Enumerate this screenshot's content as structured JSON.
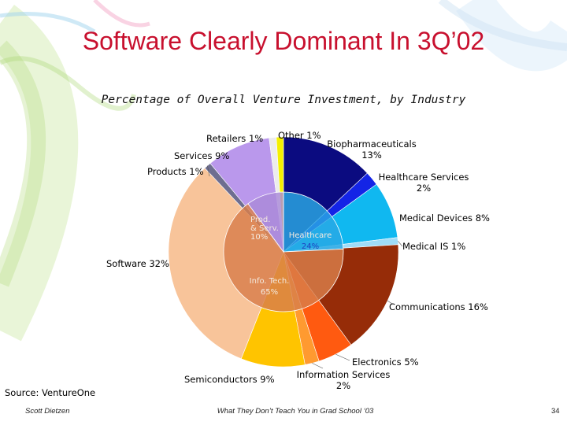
{
  "slide": {
    "title": "Software Clearly Dominant In 3Q’02",
    "source": "Source: VentureOne",
    "footer_author": "Scott Dietzen",
    "footer_center": "What They Don’t Teach You in Grad School ‘03",
    "page_number": "34"
  },
  "chart_data": {
    "type": "pie",
    "title": "Percentage of Overall Venture Investment, by Industry",
    "slices": [
      {
        "label": "Biopharmaceuticals",
        "value_label": "13%",
        "value": 13,
        "color": "#0b0b80"
      },
      {
        "label": "Healthcare Services",
        "value_label": "2%",
        "value": 2,
        "color": "#1424e6"
      },
      {
        "label": "Medical Devices",
        "value_label": "8%",
        "value": 8,
        "color": "#10b8f0"
      },
      {
        "label": "Medical IS",
        "value_label": "1%",
        "value": 1,
        "color": "#9fdcf8"
      },
      {
        "label": "Communications",
        "value_label": "16%",
        "value": 16,
        "color": "#962c08"
      },
      {
        "label": "Electronics",
        "value_label": "5%",
        "value": 5,
        "color": "#ff5a10"
      },
      {
        "label": "Information Services",
        "value_label": "2%",
        "value": 2,
        "color": "#ff9a30"
      },
      {
        "label": "Semiconductors",
        "value_label": "9%",
        "value": 9,
        "color": "#ffc400"
      },
      {
        "label": "Software",
        "value_label": "32%",
        "value": 32,
        "color": "#f8c49a"
      },
      {
        "label": "Products",
        "value_label": "1%",
        "value": 1,
        "color": "#6e6e90"
      },
      {
        "label": "Services",
        "value_label": "9%",
        "value": 9,
        "color": "#ba98ec"
      },
      {
        "label": "Retailers",
        "value_label": "1%",
        "value": 1,
        "color": "#ececec"
      },
      {
        "label": "Other",
        "value_label": "1%",
        "value": 1,
        "color": "#f4f000"
      }
    ],
    "groups": [
      {
        "label": "Healthcare",
        "value_label": "24%",
        "value": 24,
        "color": "#2aa8e4"
      },
      {
        "label": "Info. Tech.",
        "value_label": "65%",
        "value": 65,
        "color": "#d87e4a"
      },
      {
        "label": "Prod. & Serv.",
        "value_label": "10%",
        "value": 10,
        "color": "#a98ad8"
      }
    ]
  }
}
